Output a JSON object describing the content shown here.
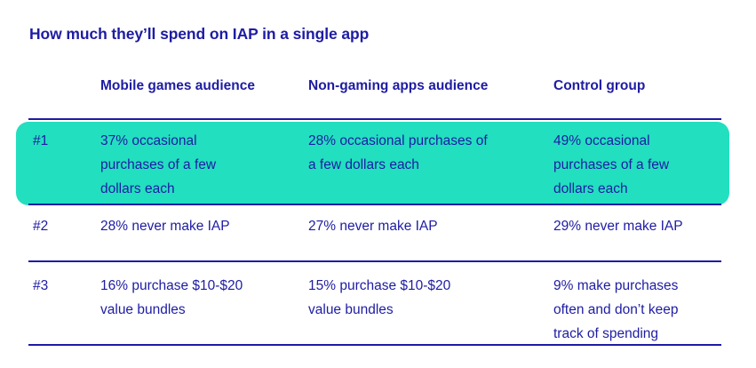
{
  "chart_data": {
    "type": "table",
    "title": "How much they’ll spend on IAP in a single app",
    "columns": [
      "Mobile games audience",
      "Non-gaming apps audience",
      "Control group"
    ],
    "rows": [
      {
        "rank": "#1",
        "highlighted": true,
        "cells": [
          "37% occasional\npurchases of a few\ndollars each",
          "28% occasional purchases of\na few dollars each",
          "49% occasional\npurchases of a few\ndollars each"
        ]
      },
      {
        "rank": "#2",
        "highlighted": false,
        "cells": [
          "28% never make IAP",
          "27% never make IAP",
          "29% never make IAP"
        ]
      },
      {
        "rank": "#3",
        "highlighted": false,
        "cells": [
          "16% purchase $10-$20\nvalue bundles",
          "15% purchase $10-$20\nvalue bundles",
          "9% make purchases\noften and don’t keep\ntrack of spending"
        ]
      }
    ],
    "layout_hints": {
      "highlighted_row": "#1",
      "legend": "none",
      "grid": "horizontal-rules-only"
    }
  },
  "colors": {
    "ink_navy": "#1e1ca3",
    "highlight_teal": "#22dfc0",
    "background": "#ffffff"
  }
}
